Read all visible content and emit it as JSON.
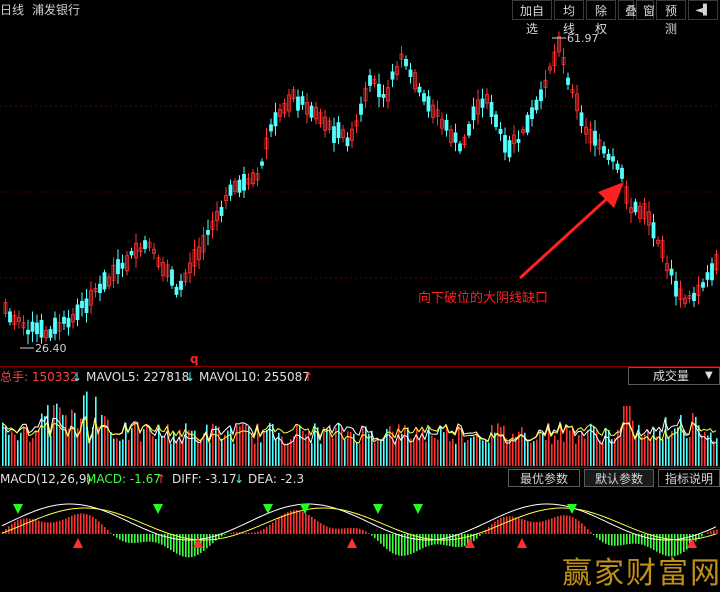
{
  "header": {
    "period": "日线",
    "stock_name": "浦发银行",
    "toolbar": [
      "加自选",
      "均线",
      "除权",
      "叠",
      "窗",
      "预测"
    ],
    "exit_glyph": "◄▌"
  },
  "price_chart": {
    "high_label": "61.97",
    "low_label": "26.40",
    "marker": "q",
    "annotation": "向下破位的大阴线缺口",
    "colors": {
      "up": "#ff3232",
      "down": "#54ffff",
      "arrow": "#ff2020",
      "text": "#ff2020"
    }
  },
  "volume_panel": {
    "total_label": "总手: 150332",
    "mavol5_label": "MAVOL5: 227818",
    "mavol10_label": "MAVOL10: 255087",
    "total_arrow": "↓",
    "mavol5_arrow": "↓",
    "mavol10_arrow": "↑",
    "dropdown_value": "成交量"
  },
  "macd_panel": {
    "title": "MACD(12,26,9)",
    "macd_label": "MACD: -1.67",
    "macd_arrow": "↑",
    "diff_label": "DIFF: -3.17",
    "diff_arrow": "↓",
    "dea_label": "DEA: -2.3",
    "buttons": [
      "最优参数",
      "默认参数",
      "指标说明"
    ]
  },
  "watermark": "赢家财富网"
}
